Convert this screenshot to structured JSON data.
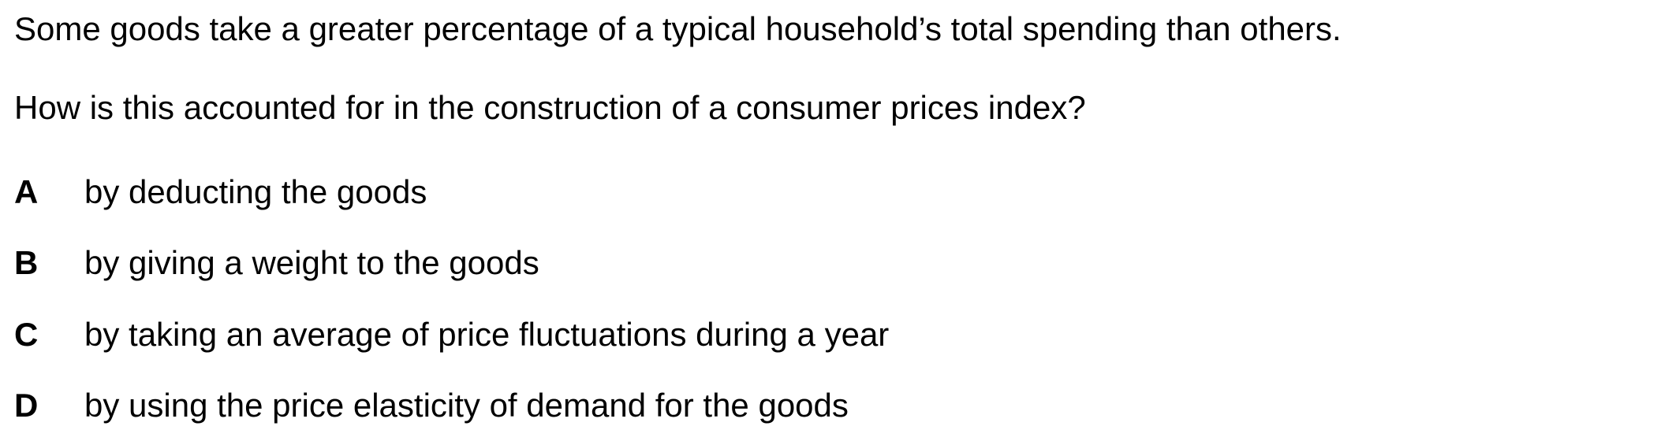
{
  "question": {
    "stem_line_1": "Some goods take a greater percentage of a typical household’s total spending than others.",
    "stem_line_2": "How is this accounted for in the construction of a consumer prices index?"
  },
  "options": [
    {
      "letter": "A",
      "text": "by deducting the goods"
    },
    {
      "letter": "B",
      "text": "by giving a weight to the goods"
    },
    {
      "letter": "C",
      "text": "by taking an average of price fluctuations during a year"
    },
    {
      "letter": "D",
      "text": "by using the price elasticity of demand for the goods"
    }
  ]
}
